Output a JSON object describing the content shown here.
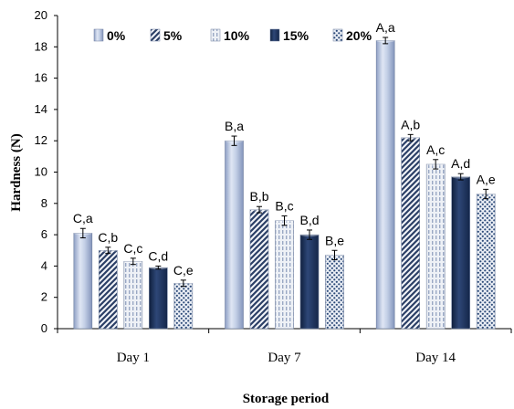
{
  "chart_data": {
    "type": "bar",
    "title": "",
    "xlabel": "Storage period",
    "ylabel": "Hardness (N)",
    "ylim": [
      0,
      20
    ],
    "yticks": [
      0,
      2,
      4,
      6,
      8,
      10,
      12,
      14,
      16,
      18,
      20
    ],
    "categories": [
      "Day 1",
      "Day 7",
      "Day 14"
    ],
    "legend_position": "top",
    "grid": false,
    "series": [
      {
        "name": "0%",
        "values": [
          6.1,
          12.0,
          18.4
        ],
        "errors": [
          0.3,
          0.3,
          0.2
        ],
        "labels": [
          "C,a",
          "B,a",
          "A,a"
        ],
        "pattern": "light-blue-cylinder",
        "color": "#aebfde"
      },
      {
        "name": "5%",
        "values": [
          5.0,
          7.6,
          12.2
        ],
        "errors": [
          0.2,
          0.2,
          0.2
        ],
        "labels": [
          "C,b",
          "B,b",
          "A,b"
        ],
        "pattern": "diagonal-stripes",
        "color": "#2b3f66"
      },
      {
        "name": "10%",
        "values": [
          4.3,
          6.9,
          10.5
        ],
        "errors": [
          0.2,
          0.3,
          0.3
        ],
        "labels": [
          "C,c",
          "B,c",
          "A,c"
        ],
        "pattern": "vertical-dashes",
        "color": "#c5cfe0"
      },
      {
        "name": "15%",
        "values": [
          3.9,
          6.0,
          9.7
        ],
        "errors": [
          0.1,
          0.3,
          0.2
        ],
        "labels": [
          "C,d",
          "B,d",
          "A,d"
        ],
        "pattern": "solid-dark",
        "color": "#1f3358"
      },
      {
        "name": "20%",
        "values": [
          2.9,
          4.7,
          8.6
        ],
        "errors": [
          0.2,
          0.3,
          0.3
        ],
        "labels": [
          "C,e",
          "B,e",
          "A,e"
        ],
        "pattern": "dots",
        "color": "#2c4a78"
      }
    ]
  }
}
